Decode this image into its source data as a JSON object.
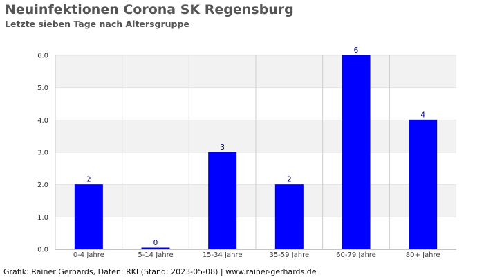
{
  "header": {
    "title": "Neuinfektionen Corona SK Regensburg",
    "subtitle": "Letzte sieben Tage nach Altersgruppe"
  },
  "footer": {
    "credit": "Grafik: Rainer Gerhards, Daten: RKI (Stand: 2023-05-08) | www.rainer-gerhards.de"
  },
  "chart_data": {
    "type": "bar",
    "title": "Neuinfektionen Corona SK Regensburg",
    "subtitle": "Letzte sieben Tage nach Altersgruppe",
    "categories": [
      "0-4 Jahre",
      "5-14 Jahre",
      "15-34 Jahre",
      "35-59 Jahre",
      "60-79 Jahre",
      "80+ Jahre"
    ],
    "values": [
      2,
      0,
      3,
      2,
      6,
      4
    ],
    "ylim": [
      0,
      6
    ],
    "yticks": [
      "0.0",
      "1.0",
      "2.0",
      "3.0",
      "4.0",
      "5.0",
      "6.0"
    ],
    "grid": true,
    "colors": {
      "bar": "#0000ff",
      "bar_edge": "#0000c0",
      "label": "#000080",
      "band_alt": "#f2f2f2",
      "grid": "#cccccc"
    }
  }
}
